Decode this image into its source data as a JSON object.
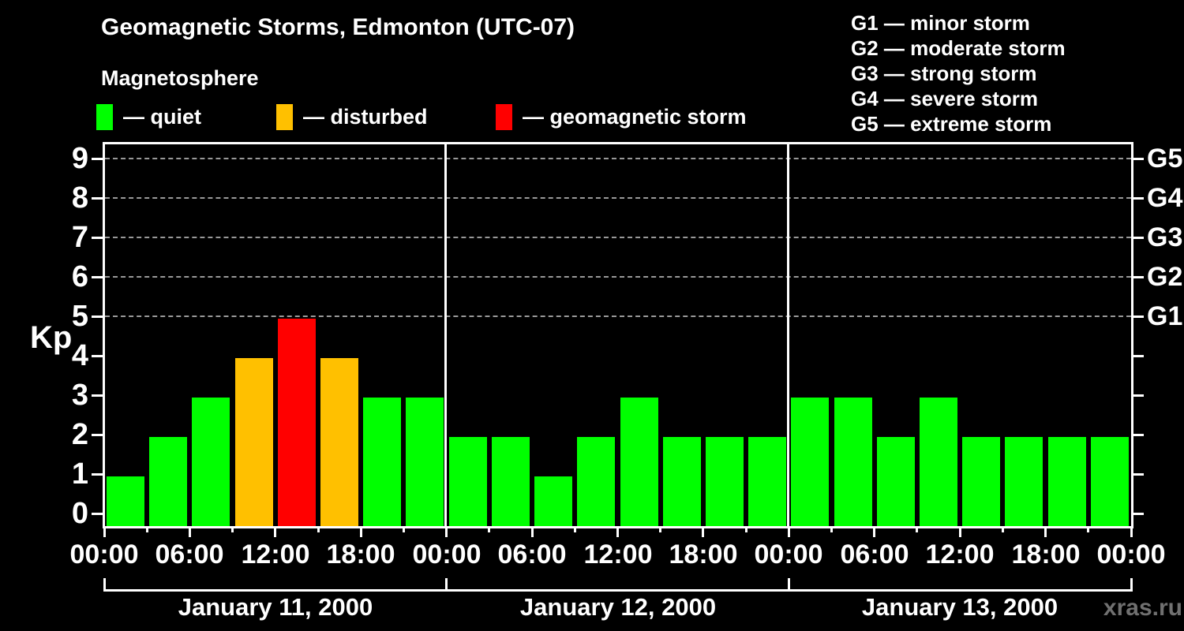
{
  "title": "Geomagnetic Storms, Edmonton (UTC-07)",
  "subtitle": "Magnetosphere",
  "legend": {
    "items": [
      {
        "state": "quiet",
        "label": "— quiet",
        "color": "#00ff00"
      },
      {
        "state": "disturbed",
        "label": "— disturbed",
        "color": "#ffc000"
      },
      {
        "state": "storm",
        "label": "— geomagnetic storm",
        "color": "#ff0000"
      }
    ]
  },
  "g_scale_legend": {
    "lines": [
      "G1 — minor storm",
      "G2 — moderate storm",
      "G3 — strong storm",
      "G4 — severe storm",
      "G5 — extreme storm"
    ]
  },
  "watermark": "xras.ru",
  "chart_data": {
    "type": "bar",
    "title": "Geomagnetic Storms, Edmonton (UTC-07)",
    "ylabel": "Kp",
    "ylim": [
      0,
      9
    ],
    "y_ticks": [
      0,
      1,
      2,
      3,
      4,
      5,
      6,
      7,
      8,
      9
    ],
    "grid": "dashed horizontal lines at Kp 5 to 9",
    "interval_hours": 3,
    "x_tick_labels_6h": [
      "00:00",
      "06:00",
      "12:00",
      "18:00",
      "00:00",
      "06:00",
      "12:00",
      "18:00",
      "00:00",
      "06:00",
      "12:00",
      "18:00",
      "00:00"
    ],
    "right_axis": [
      {
        "kp": 5,
        "label": "G1"
      },
      {
        "kp": 6,
        "label": "G2"
      },
      {
        "kp": 7,
        "label": "G3"
      },
      {
        "kp": 8,
        "label": "G4"
      },
      {
        "kp": 9,
        "label": "G5"
      }
    ],
    "series": [
      {
        "date": "January 11, 2000",
        "values": [
          1,
          2,
          3,
          4,
          5,
          4,
          3,
          3
        ],
        "states": [
          "quiet",
          "quiet",
          "quiet",
          "disturbed",
          "storm",
          "disturbed",
          "quiet",
          "quiet"
        ]
      },
      {
        "date": "January 12, 2000",
        "values": [
          2,
          2,
          1,
          2,
          3,
          2,
          2,
          2
        ],
        "states": [
          "quiet",
          "quiet",
          "quiet",
          "quiet",
          "quiet",
          "quiet",
          "quiet",
          "quiet"
        ]
      },
      {
        "date": "January 13, 2000",
        "values": [
          3,
          3,
          2,
          3,
          2,
          2,
          2,
          2
        ],
        "states": [
          "quiet",
          "quiet",
          "quiet",
          "quiet",
          "quiet",
          "quiet",
          "quiet",
          "quiet"
        ]
      }
    ],
    "colors": {
      "quiet": "#00ff00",
      "disturbed": "#ffc000",
      "storm": "#ff0000",
      "axis": "#ffffff",
      "grid": "#999999",
      "background": "#000000",
      "watermark": "#707070"
    }
  }
}
